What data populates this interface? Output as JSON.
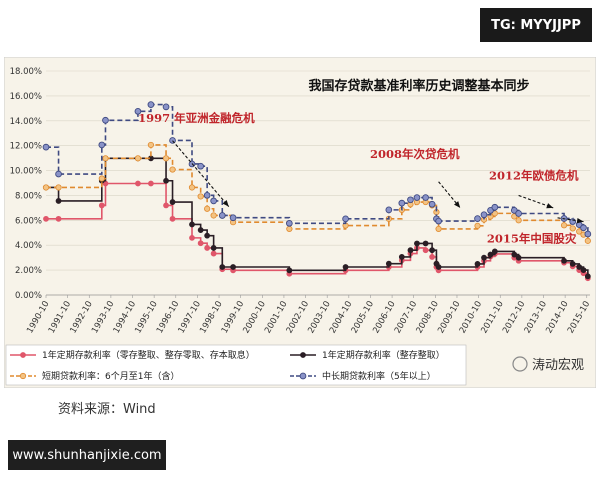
{
  "watermark_top": "TG: MYYJJPP",
  "watermark_bottom": "www.shunhanjixie.com",
  "source_label": "资料来源：Wind",
  "brand": "涛动宏观",
  "chart_data": {
    "type": "line",
    "title": "我国存贷款基准利率历史调整基本同步",
    "x_labels": [
      "1990-10",
      "1991-10",
      "1992-10",
      "1993-10",
      "1994-10",
      "1995-10",
      "1996-10",
      "1997-10",
      "1998-10",
      "1999-10",
      "2000-10",
      "2001-10",
      "2002-10",
      "2003-10",
      "2004-10",
      "2005-10",
      "2006-10",
      "2007-10",
      "2008-10",
      "2009-10",
      "2010-10",
      "2011-10",
      "2012-10",
      "2013-10",
      "2014-10",
      "2015-10"
    ],
    "ylim": [
      0,
      18
    ],
    "y_ticks": [
      "0.00%",
      "2.00%",
      "4.00%",
      "6.00%",
      "8.00%",
      "10.00%",
      "12.00%",
      "14.00%",
      "16.00%",
      "18.00%"
    ],
    "annotations": [
      {
        "text": "1997 年亚洲金融危机",
        "x": 1997.7,
        "y": 13.9
      },
      {
        "text": "2008年次贷危机",
        "x": 2007.8,
        "y": 11.0
      },
      {
        "text": "2012年欧债危机",
        "x": 2013.3,
        "y": 9.3
      },
      {
        "text": "2015年中国股灾",
        "x": 2013.2,
        "y": 4.2
      }
    ],
    "series": [
      {
        "name": "1年定期存款利率（零存整取、整存零取、存本取息）",
        "color": "#e0566a",
        "dash": "solid",
        "marker": "circle",
        "x": [
          1990.75,
          1991.33,
          1993.33,
          1993.5,
          1995.0,
          1995.6,
          1996.3,
          1996.6,
          1997.5,
          1997.9,
          1998.2,
          1998.5,
          1998.9,
          1999.4,
          2002.0,
          2004.6,
          2006.6,
          2007.2,
          2007.6,
          2007.9,
          2008.3,
          2008.6,
          2008.8,
          2008.9,
          2010.7,
          2011.0,
          2011.3,
          2011.5,
          2012.4,
          2012.6,
          2014.7,
          2015.1,
          2015.4,
          2015.6,
          2015.8
        ],
        "y": [
          6.12,
          6.12,
          7.2,
          8.96,
          8.96,
          8.96,
          7.2,
          6.12,
          4.59,
          4.16,
          3.78,
          3.33,
          2.07,
          1.98,
          1.71,
          1.98,
          2.25,
          2.79,
          3.33,
          3.78,
          3.6,
          3.06,
          2.25,
          1.98,
          2.25,
          2.75,
          3.1,
          3.3,
          3.0,
          2.75,
          2.6,
          2.3,
          2.0,
          1.75,
          1.35
        ]
      },
      {
        "name": "1年定期存款利率（整存整取）",
        "color": "#2a1e25",
        "dash": "solid",
        "marker": "circle",
        "x": [
          1990.75,
          1991.33,
          1993.33,
          1993.5,
          1995.0,
          1995.6,
          1996.3,
          1996.6,
          1997.5,
          1997.9,
          1998.2,
          1998.5,
          1998.9,
          1999.4,
          2002.0,
          2004.6,
          2006.6,
          2007.2,
          2007.6,
          2007.9,
          2008.3,
          2008.6,
          2008.8,
          2008.9,
          2010.7,
          2011.0,
          2011.3,
          2011.5,
          2012.4,
          2012.6,
          2014.7,
          2015.1,
          2015.4,
          2015.6,
          2015.8
        ],
        "y": [
          8.64,
          7.56,
          9.18,
          10.98,
          10.98,
          10.98,
          9.18,
          7.47,
          5.67,
          5.22,
          4.77,
          3.78,
          2.25,
          2.25,
          1.98,
          2.25,
          2.52,
          3.06,
          3.6,
          4.14,
          4.14,
          3.6,
          2.52,
          2.25,
          2.5,
          3.0,
          3.25,
          3.5,
          3.25,
          3.0,
          2.75,
          2.5,
          2.25,
          2.0,
          1.5
        ]
      },
      {
        "name": "短期贷款利率：6个月至1年（含）",
        "color": "#e08a2f",
        "dash": "dashed",
        "marker": "circle",
        "x": [
          1990.75,
          1991.33,
          1993.33,
          1993.5,
          1995.0,
          1995.6,
          1996.3,
          1996.6,
          1997.5,
          1997.9,
          1998.2,
          1998.5,
          1998.9,
          1999.4,
          2002.0,
          2004.6,
          2006.6,
          2007.2,
          2007.6,
          2007.9,
          2008.3,
          2008.6,
          2008.8,
          2008.9,
          2010.7,
          2011.0,
          2011.3,
          2011.5,
          2012.4,
          2012.6,
          2014.7,
          2015.1,
          2015.4,
          2015.6,
          2015.8
        ],
        "y": [
          8.64,
          8.64,
          9.36,
          10.98,
          10.98,
          12.06,
          10.98,
          10.08,
          8.64,
          7.92,
          6.93,
          6.39,
          6.39,
          5.85,
          5.31,
          5.58,
          6.12,
          6.84,
          7.29,
          7.47,
          7.47,
          7.2,
          6.66,
          5.31,
          5.56,
          6.06,
          6.31,
          6.56,
          6.31,
          6.0,
          5.6,
          5.35,
          5.1,
          4.85,
          4.35
        ]
      },
      {
        "name": "中长期贷款利率（5年以上）",
        "color": "#3f4a82",
        "dash": "dashed",
        "marker": "diamond",
        "x": [
          1990.75,
          1991.33,
          1993.33,
          1993.5,
          1995.0,
          1995.6,
          1996.3,
          1996.6,
          1997.5,
          1997.9,
          1998.2,
          1998.5,
          1998.9,
          1999.4,
          2002.0,
          2004.6,
          2006.6,
          2007.2,
          2007.6,
          2007.9,
          2008.3,
          2008.6,
          2008.8,
          2008.9,
          2010.7,
          2011.0,
          2011.3,
          2011.5,
          2012.4,
          2012.6,
          2014.7,
          2015.1,
          2015.4,
          2015.6,
          2015.8
        ],
        "y": [
          11.88,
          9.72,
          12.06,
          14.04,
          14.76,
          15.3,
          15.12,
          12.42,
          10.53,
          10.35,
          8.01,
          7.56,
          6.39,
          6.21,
          5.76,
          6.12,
          6.84,
          7.38,
          7.65,
          7.83,
          7.83,
          7.29,
          6.12,
          5.94,
          6.14,
          6.45,
          6.8,
          7.05,
          6.8,
          6.55,
          6.15,
          5.9,
          5.65,
          5.4,
          4.9
        ]
      }
    ],
    "legend": [
      "1年定期存款利率（零存整取、整存零取、存本取息）",
      "1年定期存款利率（整存整取）",
      "短期贷款利率：6个月至1年（含）",
      "中长期贷款利率（5年以上）"
    ]
  }
}
